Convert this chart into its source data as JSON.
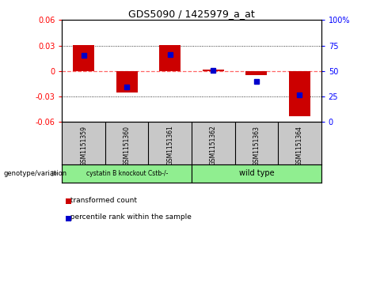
{
  "title": "GDS5090 / 1425979_a_at",
  "samples": [
    "GSM1151359",
    "GSM1151360",
    "GSM1151361",
    "GSM1151362",
    "GSM1151363",
    "GSM1151364"
  ],
  "red_bars": [
    0.031,
    -0.025,
    0.031,
    0.002,
    -0.005,
    -0.053
  ],
  "blue_markers": [
    0.018,
    -0.019,
    0.019,
    0.001,
    -0.012,
    -0.028
  ],
  "ylim": [
    -0.06,
    0.06
  ],
  "yticks_left": [
    -0.06,
    -0.03,
    0.0,
    0.03,
    0.06
  ],
  "yticks_right": [
    0,
    25,
    50,
    75,
    100
  ],
  "bar_color": "#CC0000",
  "marker_color": "#0000CC",
  "bar_width": 0.5,
  "zero_line_color": "#FF6666",
  "grid_color": "black",
  "bg_color": "#FFFFFF",
  "label_bg": "#C8C8C8",
  "group1_label": "cystatin B knockout Cstb-/-",
  "group2_label": "wild type",
  "group_color": "#90EE90",
  "genotype_label": "genotype/variation",
  "legend_red": "transformed count",
  "legend_blue": "percentile rank within the sample"
}
